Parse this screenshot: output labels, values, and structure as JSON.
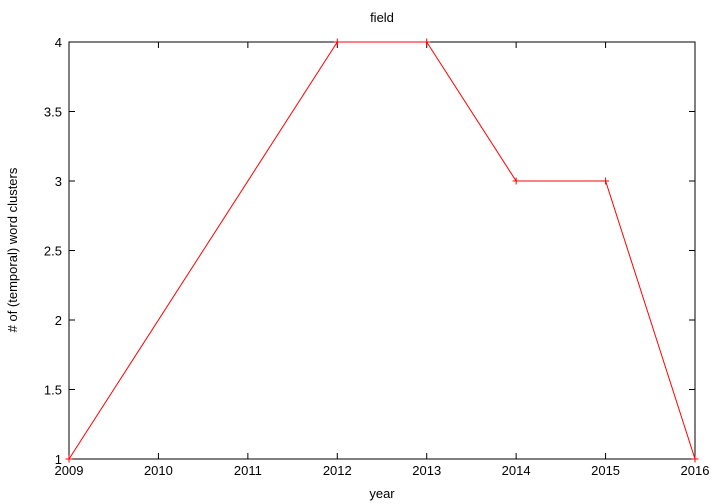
{
  "chart_data": {
    "type": "line",
    "title": "field",
    "xlabel": "year",
    "ylabel": "# of (temporal) word clusters",
    "xlim": [
      2009,
      2016
    ],
    "ylim": [
      1,
      4
    ],
    "x_ticks": [
      "2009",
      "2010",
      "2011",
      "2012",
      "2013",
      "2014",
      "2015",
      "2016"
    ],
    "y_ticks": [
      "1",
      "1.5",
      "2",
      "2.5",
      "3",
      "3.5",
      "4"
    ],
    "grid": false,
    "legend": "none",
    "series": [
      {
        "color": "#ff0000",
        "marker": "plus",
        "x": [
          2009,
          2012,
          2013,
          2014,
          2015,
          2016
        ],
        "y": [
          1,
          4,
          4,
          3,
          3,
          1
        ]
      }
    ]
  }
}
